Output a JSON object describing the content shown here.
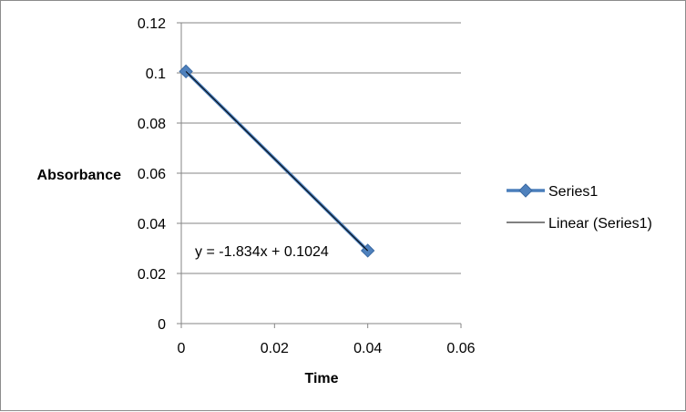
{
  "chart_data": {
    "type": "scatter",
    "xlabel": "Time",
    "ylabel": "Absorbance",
    "xlim": [
      0,
      0.06
    ],
    "ylim": [
      0,
      0.12
    ],
    "x_ticks": [
      "0",
      "0.02",
      "0.04",
      "0.06"
    ],
    "y_ticks": [
      "0",
      "0.02",
      "0.04",
      "0.06",
      "0.08",
      "0.1",
      "0.12"
    ],
    "grid": "horizontal major gridlines",
    "legend_position": "right",
    "series": [
      {
        "name": "Series1",
        "x": [
          0.001,
          0.04
        ],
        "y": [
          0.1006,
          0.0291
        ],
        "marker": "diamond",
        "color": "#4a7ebb"
      }
    ],
    "trendline": {
      "name": "Linear (Series1)",
      "slope": -1.834,
      "intercept": 0.1024,
      "x_range": [
        0.001,
        0.04
      ],
      "equation_label": "y = -1.834x + 0.1024",
      "color": "#000000"
    }
  }
}
